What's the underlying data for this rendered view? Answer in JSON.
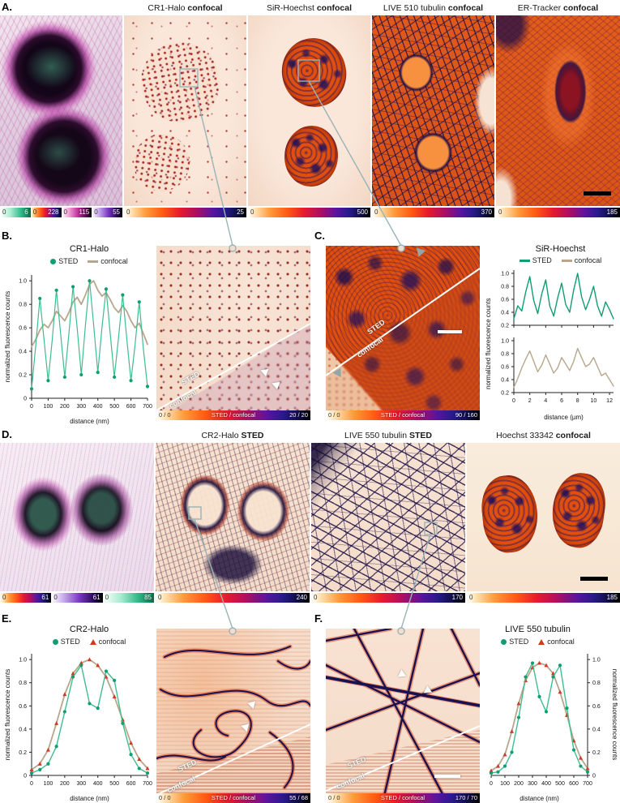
{
  "figure": {
    "panel_a_label": "A.",
    "panel_b_label": "B.",
    "panel_c_label": "C.",
    "panel_d_label": "D.",
    "panel_e_label": "E.",
    "panel_f_label": "F."
  },
  "colors": {
    "sted_green": "#0f9d72",
    "confocal_tan": "#b7a68c",
    "confocal_red": "#cf3b22",
    "connector_gray": "#9ab3b5"
  },
  "panel_a": {
    "titles": [
      {
        "name": "CR1-Halo",
        "mode": "confocal"
      },
      {
        "name": "SiR-Hoechst",
        "mode": "confocal"
      },
      {
        "name": "LIVE 510 tubulin",
        "mode": "confocal"
      },
      {
        "name": "ER-Tracker",
        "mode": "confocal"
      }
    ],
    "composite_colorbar": {
      "segments": [
        {
          "min": "0",
          "max": "6"
        },
        {
          "min": "0",
          "max": "228"
        },
        {
          "min": "0",
          "max": "115"
        },
        {
          "min": "0",
          "max": "55"
        }
      ]
    },
    "colorbars": [
      {
        "min": "0",
        "max": "25"
      },
      {
        "min": "0",
        "max": "500"
      },
      {
        "min": "0",
        "max": "370"
      },
      {
        "min": "0",
        "max": "185"
      }
    ]
  },
  "panel_b": {
    "zoom": {
      "cb_left": "0 / 0",
      "cb_center": "STED / confocal",
      "cb_right": "20 / 20",
      "label_sted": "STED",
      "label_confocal": "confocal"
    }
  },
  "panel_c": {
    "ylabel": "normalized fluorescence counts",
    "zoom": {
      "cb_left": "0 / 0",
      "cb_center": "STED / confocal",
      "cb_right": "90 / 160",
      "label_sted": "STED",
      "label_confocal": "confocal"
    }
  },
  "panel_d": {
    "titles": [
      {
        "name": "CR2-Halo",
        "mode": "STED"
      },
      {
        "name": "LIVE 550 tubulin",
        "mode": "STED"
      },
      {
        "name": "Hoechst 33342",
        "mode": "confocal"
      }
    ],
    "composite_colorbar": {
      "segments": [
        {
          "min": "0",
          "max": "61"
        },
        {
          "min": "0",
          "max": "61"
        },
        {
          "min": "0",
          "max": "85"
        }
      ]
    },
    "colorbars": [
      {
        "min": "0",
        "max": "240"
      },
      {
        "min": "0",
        "max": "170"
      },
      {
        "min": "0",
        "max": "185"
      }
    ]
  },
  "panel_e": {
    "zoom": {
      "cb_left": "0 / 0",
      "cb_center": "STED / confocal",
      "cb_right": "55 / 68",
      "label_sted": "STED",
      "label_confocal": "confocal"
    }
  },
  "panel_f": {
    "zoom": {
      "cb_left": "0 / 0",
      "cb_center": "STED / confocal",
      "cb_right": "170 / 70",
      "label_sted": "STED",
      "label_confocal": "confocal"
    }
  },
  "chart_data": [
    {
      "id": "plot-b",
      "type": "line",
      "title": "CR1-Halo",
      "xlabel": "distance (nm)",
      "ylabel": "normalized fluorescence counts",
      "xlim": [
        0,
        700
      ],
      "ylim": [
        0,
        1.05
      ],
      "xticks": [
        0,
        100,
        200,
        300,
        400,
        500,
        600,
        700
      ],
      "yticks": [
        0,
        0.2,
        0.4,
        0.6,
        0.8,
        1.0
      ],
      "legend": [
        {
          "label": "STED",
          "color": "#0f9d72",
          "glyph": "dot"
        },
        {
          "label": "confocal",
          "color": "#b7a68c",
          "glyph": "line"
        }
      ],
      "series": [
        {
          "name": "confocal",
          "color": "#b7a68c",
          "line": true,
          "width": 1.8,
          "x": [
            0,
            25,
            50,
            75,
            100,
            125,
            150,
            175,
            200,
            225,
            250,
            275,
            300,
            325,
            350,
            375,
            400,
            425,
            450,
            475,
            500,
            525,
            550,
            575,
            600,
            625,
            650,
            675,
            700
          ],
          "y": [
            0.44,
            0.5,
            0.58,
            0.63,
            0.6,
            0.66,
            0.74,
            0.7,
            0.66,
            0.73,
            0.82,
            0.86,
            0.8,
            0.88,
            0.97,
            1.0,
            0.92,
            0.87,
            0.9,
            0.84,
            0.77,
            0.73,
            0.79,
            0.74,
            0.66,
            0.6,
            0.64,
            0.55,
            0.46
          ]
        },
        {
          "name": "STED",
          "color": "#3fbd8f",
          "mcolor": "#0f9d72",
          "line": true,
          "width": 1.2,
          "marker": "circle",
          "every": 2,
          "x": [
            0,
            25,
            50,
            75,
            100,
            125,
            150,
            175,
            200,
            225,
            250,
            275,
            300,
            325,
            350,
            375,
            400,
            425,
            450,
            475,
            500,
            525,
            550,
            575,
            600,
            625,
            650,
            675,
            700
          ],
          "y": [
            0.08,
            0.45,
            0.85,
            0.5,
            0.15,
            0.5,
            0.92,
            0.55,
            0.18,
            0.55,
            0.95,
            0.6,
            0.2,
            0.62,
            1.0,
            0.62,
            0.22,
            0.6,
            0.93,
            0.55,
            0.18,
            0.52,
            0.88,
            0.5,
            0.15,
            0.46,
            0.82,
            0.42,
            0.1
          ]
        }
      ]
    },
    {
      "id": "plot-c-sted",
      "type": "line",
      "title": "SiR-Hoechst",
      "xlabel": "",
      "ylabel": "",
      "xlim": [
        0,
        12.5
      ],
      "ylim": [
        0.2,
        1.05
      ],
      "xticks": [
        0,
        2,
        4,
        6,
        8,
        10,
        12
      ],
      "xtick_labels": false,
      "yticks": [
        0.2,
        0.4,
        0.6,
        0.8,
        1.0
      ],
      "legend": [
        {
          "label": "STED",
          "color": "#0f9d72",
          "glyph": "line"
        },
        {
          "label": "confocal",
          "color": "#b7a68c",
          "glyph": "line"
        }
      ],
      "series": [
        {
          "name": "STED",
          "color": "#0f9d72",
          "line": true,
          "width": 1.4,
          "x": [
            0,
            0.5,
            1,
            1.5,
            2,
            2.5,
            3,
            3.5,
            4,
            4.5,
            5,
            5.5,
            6,
            6.5,
            7,
            7.5,
            8,
            8.5,
            9,
            9.5,
            10,
            10.5,
            11,
            11.5,
            12,
            12.5
          ],
          "y": [
            0.3,
            0.5,
            0.42,
            0.72,
            0.95,
            0.58,
            0.38,
            0.68,
            0.9,
            0.5,
            0.34,
            0.62,
            0.85,
            0.52,
            0.4,
            0.74,
            1.0,
            0.64,
            0.44,
            0.6,
            0.8,
            0.5,
            0.34,
            0.56,
            0.44,
            0.3
          ]
        }
      ]
    },
    {
      "id": "plot-c-confocal",
      "type": "line",
      "title": "",
      "xlabel": "distance (µm)",
      "ylabel": "",
      "xlim": [
        0,
        12.5
      ],
      "ylim": [
        0.2,
        1.05
      ],
      "xticks": [
        0,
        2,
        4,
        6,
        8,
        10,
        12
      ],
      "yticks": [
        0.2,
        0.4,
        0.6,
        0.8,
        1.0
      ],
      "series": [
        {
          "name": "confocal",
          "color": "#b7a68c",
          "line": true,
          "width": 1.4,
          "x": [
            0,
            0.5,
            1,
            1.5,
            2,
            2.5,
            3,
            3.5,
            4,
            4.5,
            5,
            5.5,
            6,
            6.5,
            7,
            7.5,
            8,
            8.5,
            9,
            9.5,
            10,
            10.5,
            11,
            11.5,
            12,
            12.5
          ],
          "y": [
            0.28,
            0.42,
            0.58,
            0.72,
            0.84,
            0.68,
            0.52,
            0.62,
            0.78,
            0.64,
            0.5,
            0.58,
            0.74,
            0.64,
            0.54,
            0.68,
            0.88,
            0.74,
            0.6,
            0.64,
            0.74,
            0.6,
            0.46,
            0.5,
            0.4,
            0.3
          ]
        }
      ]
    },
    {
      "id": "plot-e",
      "type": "line",
      "title": "CR2-Halo",
      "xlabel": "distance (nm)",
      "ylabel": "normalized fluorescence counts",
      "xlim": [
        0,
        700
      ],
      "ylim": [
        0,
        1.05
      ],
      "xticks": [
        0,
        100,
        200,
        300,
        400,
        500,
        600,
        700
      ],
      "yticks": [
        0,
        0.2,
        0.4,
        0.6,
        0.8,
        1.0
      ],
      "legend": [
        {
          "label": "STED",
          "color": "#0f9d72",
          "glyph": "dot"
        },
        {
          "label": "confocal",
          "color": "#cf3b22",
          "glyph": "tri"
        }
      ],
      "series": [
        {
          "name": "confocal",
          "color": "#b7a68c",
          "mcolor": "#cf3b22",
          "line": true,
          "width": 1.8,
          "marker": "triangle",
          "x": [
            0,
            50,
            100,
            150,
            200,
            250,
            300,
            350,
            400,
            450,
            500,
            550,
            600,
            650,
            700
          ],
          "y": [
            0.05,
            0.1,
            0.22,
            0.45,
            0.7,
            0.88,
            0.97,
            1.0,
            0.95,
            0.85,
            0.68,
            0.48,
            0.28,
            0.14,
            0.06
          ]
        },
        {
          "name": "STED",
          "color": "#3fbd8f",
          "mcolor": "#0f9d72",
          "line": true,
          "width": 1.4,
          "marker": "circle",
          "x": [
            0,
            50,
            100,
            150,
            200,
            250,
            300,
            350,
            400,
            450,
            500,
            550,
            600,
            650,
            700
          ],
          "y": [
            0.02,
            0.05,
            0.1,
            0.25,
            0.55,
            0.85,
            0.95,
            0.62,
            0.58,
            0.9,
            0.82,
            0.45,
            0.18,
            0.06,
            0.02
          ]
        }
      ]
    },
    {
      "id": "plot-f",
      "type": "line",
      "title": "LIVE 550 tubulin",
      "xlabel": "distance (nm)",
      "ylabel": "normalized fluorescence counts",
      "y_side": "right",
      "xlim": [
        0,
        700
      ],
      "ylim": [
        0,
        1.05
      ],
      "xticks": [
        0,
        100,
        200,
        300,
        400,
        500,
        600,
        700
      ],
      "yticks": [
        0,
        0.2,
        0.4,
        0.6,
        0.8,
        1.0
      ],
      "legend": [
        {
          "label": "STED",
          "color": "#0f9d72",
          "glyph": "dot"
        },
        {
          "label": "confocal",
          "color": "#cf3b22",
          "glyph": "tri"
        }
      ],
      "series": [
        {
          "name": "confocal",
          "color": "#b7a68c",
          "mcolor": "#cf3b22",
          "line": true,
          "width": 1.8,
          "marker": "triangle",
          "x": [
            0,
            50,
            100,
            150,
            200,
            250,
            300,
            350,
            400,
            450,
            500,
            550,
            600,
            650,
            700
          ],
          "y": [
            0.04,
            0.08,
            0.18,
            0.38,
            0.62,
            0.82,
            0.93,
            0.97,
            0.95,
            0.88,
            0.72,
            0.52,
            0.3,
            0.15,
            0.06
          ]
        },
        {
          "name": "STED",
          "color": "#3fbd8f",
          "mcolor": "#0f9d72",
          "line": true,
          "width": 1.4,
          "marker": "circle",
          "x": [
            0,
            50,
            100,
            150,
            200,
            250,
            300,
            350,
            400,
            450,
            500,
            550,
            600,
            650,
            700
          ],
          "y": [
            0.02,
            0.03,
            0.08,
            0.2,
            0.5,
            0.85,
            0.97,
            0.68,
            0.55,
            0.85,
            0.95,
            0.58,
            0.22,
            0.08,
            0.03
          ]
        }
      ]
    }
  ]
}
